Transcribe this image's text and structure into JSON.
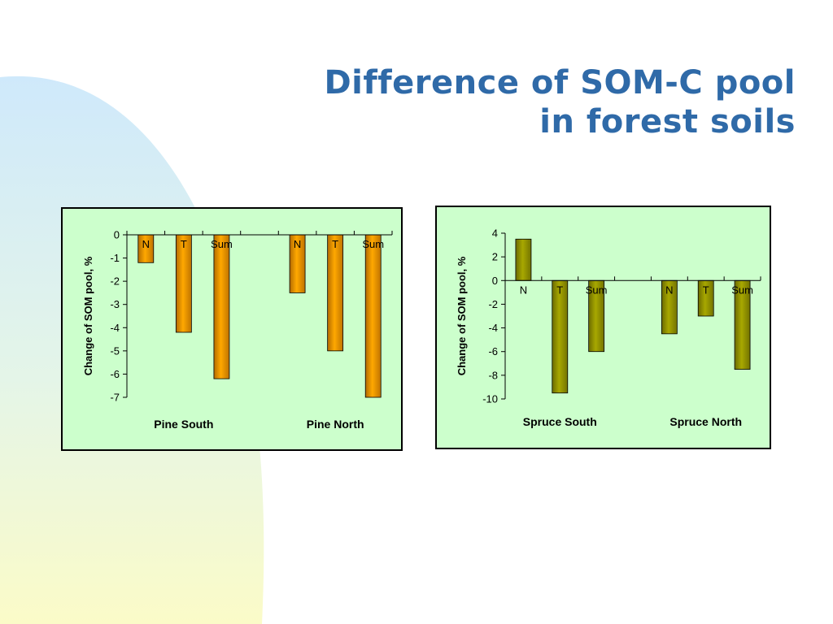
{
  "slide": {
    "title_line1": "Difference of SOM-C pool",
    "title_line2": "in forest soils",
    "colors": {
      "title": "#2f6aa8",
      "panel_bg": "#ccffcc",
      "pine_bar": "#ff9900",
      "spruce_bar": "#999900"
    }
  },
  "chart_data": [
    {
      "type": "bar",
      "title": "",
      "ylabel": "Change of SOM pool, %",
      "ylim": [
        -7,
        0
      ],
      "yticks": [
        0,
        -1,
        -2,
        -3,
        -4,
        -5,
        -6,
        -7
      ],
      "color": "#ff9900",
      "groups": [
        {
          "name": "Pine South",
          "bars": [
            {
              "label": "N",
              "value": -1.2
            },
            {
              "label": "T",
              "value": -4.2
            },
            {
              "label": "Sum",
              "value": -6.2
            }
          ]
        },
        {
          "name": "Pine North",
          "bars": [
            {
              "label": "N",
              "value": -2.5
            },
            {
              "label": "T",
              "value": -5.0
            },
            {
              "label": "Sum",
              "value": -7.0
            }
          ]
        }
      ]
    },
    {
      "type": "bar",
      "title": "",
      "ylabel": "Change of SOM pool, %",
      "ylim": [
        -10,
        4
      ],
      "yticks": [
        4,
        2,
        0,
        -2,
        -4,
        -6,
        -8,
        -10
      ],
      "color": "#999900",
      "groups": [
        {
          "name": "Spruce South",
          "bars": [
            {
              "label": "N",
              "value": 3.5
            },
            {
              "label": "T",
              "value": -9.5
            },
            {
              "label": "Sum",
              "value": -6.0
            }
          ]
        },
        {
          "name": "Spruce North",
          "bars": [
            {
              "label": "N",
              "value": -4.5
            },
            {
              "label": "T",
              "value": -3.0
            },
            {
              "label": "Sum",
              "value": -7.5
            }
          ]
        }
      ]
    }
  ]
}
